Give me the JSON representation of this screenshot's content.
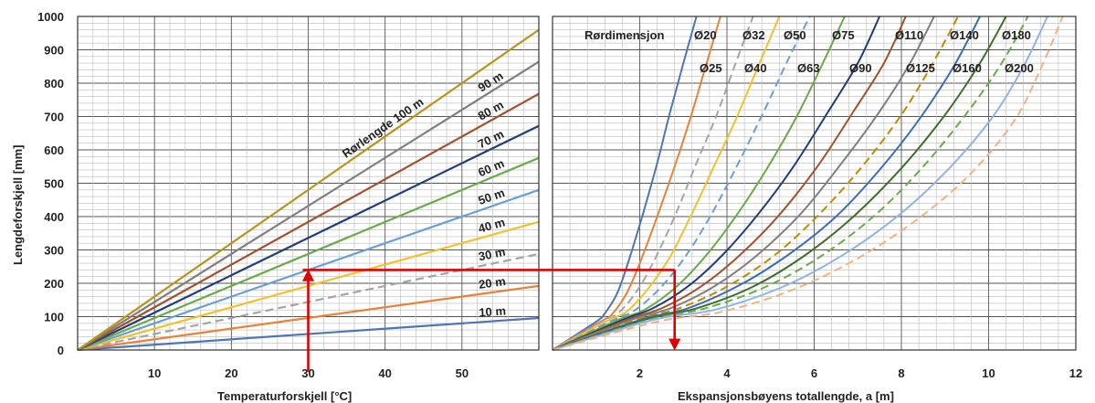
{
  "chart_data": [
    {
      "type": "line",
      "title": "",
      "xlabel": "Temperaturforskjell [°C]",
      "ylabel": "Lengdeforskjell [mm]",
      "xlim": [
        0,
        60
      ],
      "ylim": [
        0,
        1000
      ],
      "x_ticks": [
        "10",
        "20",
        "30",
        "40",
        "50"
      ],
      "y_ticks": [
        "0",
        "100",
        "200",
        "300",
        "400",
        "500",
        "600",
        "700",
        "800",
        "900",
        "1000"
      ],
      "grid": true,
      "series": [
        {
          "name": "10 m",
          "color": "#4f74b8",
          "dash": "solid",
          "x": [
            0,
            60
          ],
          "y": [
            0,
            96
          ]
        },
        {
          "name": "20 m",
          "color": "#e8823a",
          "dash": "solid",
          "x": [
            0,
            60
          ],
          "y": [
            0,
            192
          ]
        },
        {
          "name": "30 m",
          "color": "#a5a5a5",
          "dash": "dashed",
          "x": [
            0,
            60
          ],
          "y": [
            0,
            288
          ]
        },
        {
          "name": "40 m",
          "color": "#f2c12e",
          "dash": "solid",
          "x": [
            0,
            60
          ],
          "y": [
            0,
            384
          ]
        },
        {
          "name": "50 m",
          "color": "#6a9fd4",
          "dash": "solid",
          "x": [
            0,
            60
          ],
          "y": [
            0,
            480
          ]
        },
        {
          "name": "60 m",
          "color": "#6aaa4a",
          "dash": "solid",
          "x": [
            0,
            60
          ],
          "y": [
            0,
            576
          ]
        },
        {
          "name": "70 m",
          "color": "#1f3f78",
          "dash": "solid",
          "x": [
            0,
            60
          ],
          "y": [
            0,
            672
          ]
        },
        {
          "name": "80 m",
          "color": "#a0522d",
          "dash": "solid",
          "x": [
            0,
            60
          ],
          "y": [
            0,
            768
          ]
        },
        {
          "name": "90 m",
          "color": "#7f7f7f",
          "dash": "solid",
          "x": [
            0,
            60
          ],
          "y": [
            0,
            864
          ]
        },
        {
          "name": "Rørlengde 100 m",
          "color": "#b8951a",
          "dash": "solid",
          "x": [
            0,
            60
          ],
          "y": [
            0,
            960
          ]
        }
      ],
      "example_path": {
        "color": "#e00000",
        "x": [
          30,
          30
        ],
        "y": [
          0,
          240
        ]
      }
    },
    {
      "type": "line",
      "title": "",
      "xlabel": "Ekspansjonsbøyens totallengde, a [m]",
      "ylabel": "",
      "xlim": [
        0,
        12
      ],
      "ylim": [
        0,
        1000
      ],
      "x_ticks": [
        "2",
        "4",
        "6",
        "8",
        "10",
        "12"
      ],
      "grid": true,
      "legend_title": "Rørdimensjon",
      "series": [
        {
          "name": "Ø20",
          "color": "#4f74b8",
          "dash": "solid",
          "x": [
            0,
            1.0,
            1.2,
            1.5,
            1.8,
            2.1,
            2.4,
            2.7,
            3.0,
            3.3
          ],
          "y": [
            0,
            85,
            110,
            175,
            290,
            420,
            560,
            715,
            860,
            1000
          ]
        },
        {
          "name": "Ø25",
          "color": "#e8823a",
          "dash": "solid",
          "x": [
            0,
            1.1,
            1.35,
            1.7,
            2.0,
            2.4,
            2.8,
            3.15,
            3.5,
            3.85
          ],
          "y": [
            0,
            85,
            105,
            170,
            260,
            400,
            550,
            690,
            845,
            1000
          ]
        },
        {
          "name": "Ø32",
          "color": "#a5a5a5",
          "dash": "dashed",
          "x": [
            0,
            1.2,
            1.5,
            1.9,
            2.3,
            2.8,
            3.3,
            3.75,
            4.2,
            4.6
          ],
          "y": [
            0,
            90,
            110,
            170,
            260,
            400,
            560,
            700,
            860,
            1000
          ]
        },
        {
          "name": "Ø40",
          "color": "#f2c12e",
          "dash": "solid",
          "x": [
            0,
            1.3,
            1.7,
            2.2,
            2.7,
            3.2,
            3.7,
            4.2,
            4.7,
            5.2
          ],
          "y": [
            0,
            90,
            115,
            185,
            280,
            410,
            550,
            690,
            845,
            1000
          ]
        },
        {
          "name": "Ø50",
          "color": "#6a9fd4",
          "dash": "dashed",
          "x": [
            0,
            1.4,
            1.9,
            2.5,
            3.1,
            3.7,
            4.3,
            4.9,
            5.4,
            5.9
          ],
          "y": [
            0,
            90,
            120,
            190,
            290,
            420,
            570,
            730,
            870,
            1000
          ]
        },
        {
          "name": "Ø63",
          "color": "#6aaa4a",
          "dash": "solid",
          "x": [
            0,
            1.5,
            2.1,
            2.8,
            3.5,
            4.2,
            4.9,
            5.6,
            6.2,
            6.7
          ],
          "y": [
            0,
            90,
            120,
            185,
            280,
            400,
            540,
            700,
            860,
            1000
          ]
        },
        {
          "name": "Ø75",
          "color": "#1f3f78",
          "dash": "solid",
          "x": [
            0,
            1.6,
            2.3,
            3.1,
            3.9,
            4.7,
            5.5,
            6.3,
            7.0,
            7.5
          ],
          "y": [
            0,
            90,
            125,
            190,
            285,
            405,
            545,
            710,
            860,
            1000
          ]
        },
        {
          "name": "Ø90",
          "color": "#a0522d",
          "dash": "solid",
          "x": [
            0,
            1.7,
            2.5,
            3.4,
            4.3,
            5.2,
            6.1,
            6.9,
            7.6,
            8.1
          ],
          "y": [
            0,
            90,
            125,
            190,
            285,
            405,
            555,
            715,
            860,
            1000
          ]
        },
        {
          "name": "Ø110",
          "color": "#7f7f7f",
          "dash": "solid",
          "x": [
            0,
            1.8,
            2.7,
            3.7,
            4.7,
            5.7,
            6.6,
            7.5,
            8.2,
            8.75
          ],
          "y": [
            0,
            90,
            125,
            190,
            285,
            410,
            555,
            715,
            860,
            1000
          ]
        },
        {
          "name": "Ø125",
          "color": "#c08a00",
          "dash": "dashed",
          "x": [
            0,
            1.9,
            2.9,
            4.0,
            5.1,
            6.1,
            7.1,
            8.0,
            8.7,
            9.3
          ],
          "y": [
            0,
            90,
            125,
            190,
            285,
            405,
            550,
            705,
            855,
            1000
          ]
        },
        {
          "name": "Ø140",
          "color": "#3c6db5",
          "dash": "solid",
          "x": [
            0,
            2.0,
            3.1,
            4.3,
            5.4,
            6.5,
            7.5,
            8.4,
            9.2,
            9.8
          ],
          "y": [
            0,
            90,
            125,
            195,
            285,
            400,
            540,
            690,
            850,
            1000
          ]
        },
        {
          "name": "Ø160",
          "color": "#3f6e28",
          "dash": "solid",
          "x": [
            0,
            2.1,
            3.3,
            4.6,
            5.8,
            6.9,
            8.0,
            9.0,
            9.8,
            10.4
          ],
          "y": [
            0,
            90,
            125,
            190,
            285,
            400,
            545,
            705,
            860,
            1000
          ]
        },
        {
          "name": "Ø180",
          "color": "#6aaa4a",
          "dash": "dashed",
          "x": [
            0,
            2.2,
            3.5,
            4.9,
            6.2,
            7.4,
            8.5,
            9.5,
            10.3,
            10.9
          ],
          "y": [
            0,
            90,
            125,
            190,
            285,
            405,
            550,
            710,
            860,
            1000
          ]
        },
        {
          "name": "Ø200",
          "color": "#8fb4e3",
          "dash": "solid",
          "x": [
            0,
            2.3,
            3.7,
            5.2,
            6.6,
            7.9,
            9.1,
            10.1,
            10.8,
            11.35
          ],
          "y": [
            0,
            90,
            120,
            185,
            280,
            400,
            545,
            700,
            850,
            1000
          ]
        },
        {
          "name": "",
          "color": "#f4b183",
          "dash": "dashed",
          "x": [
            0,
            2.4,
            3.9,
            5.5,
            7.0,
            8.4,
            9.6,
            10.6,
            11.2,
            11.7
          ],
          "y": [
            0,
            85,
            115,
            180,
            275,
            395,
            530,
            690,
            845,
            1000
          ]
        }
      ],
      "example_path": {
        "color": "#e00000",
        "x": [
          2.8,
          2.8
        ],
        "y": [
          240,
          0
        ]
      }
    }
  ]
}
